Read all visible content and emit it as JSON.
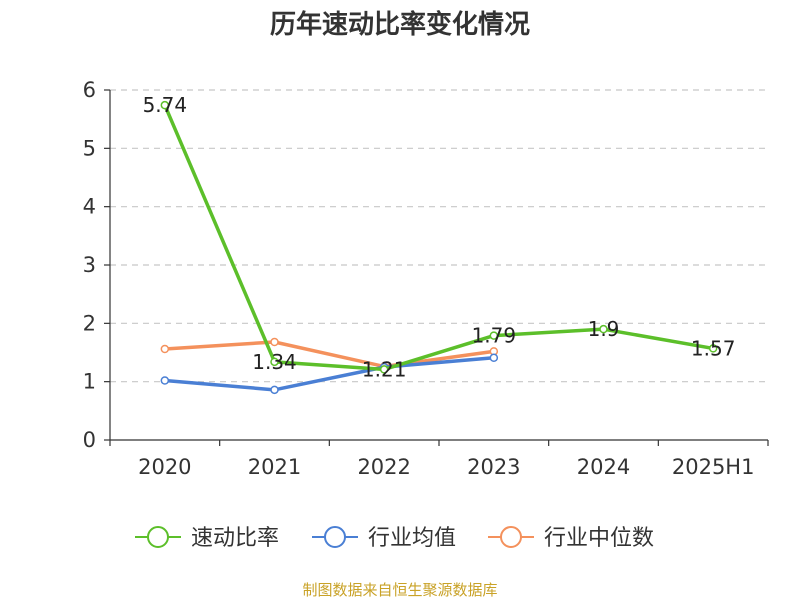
{
  "chart_data": {
    "type": "line",
    "title": "历年速动比率变化情况",
    "categories": [
      "2020",
      "2021",
      "2022",
      "2023",
      "2024",
      "2025H1"
    ],
    "ylim": [
      0,
      6
    ],
    "yticks": [
      "0",
      "1",
      "2",
      "3",
      "4",
      "5",
      "6"
    ],
    "grid": true,
    "legend_position": "bottom",
    "series": [
      {
        "name": "速动比率",
        "color": "#5cbf2a",
        "values": [
          5.74,
          1.34,
          1.21,
          1.79,
          1.9,
          1.57
        ],
        "labels": [
          "5.74",
          "1.34",
          "1.21",
          "1.79",
          "1.9",
          "1.57"
        ]
      },
      {
        "name": "行业均值",
        "color": "#4a7fd4",
        "values": [
          1.02,
          0.86,
          1.25,
          1.41,
          null,
          null
        ]
      },
      {
        "name": "行业中位数",
        "color": "#f4915c",
        "values": [
          1.56,
          1.68,
          1.26,
          1.52,
          null,
          null
        ]
      }
    ]
  },
  "source": "制图数据来自恒生聚源数据库"
}
